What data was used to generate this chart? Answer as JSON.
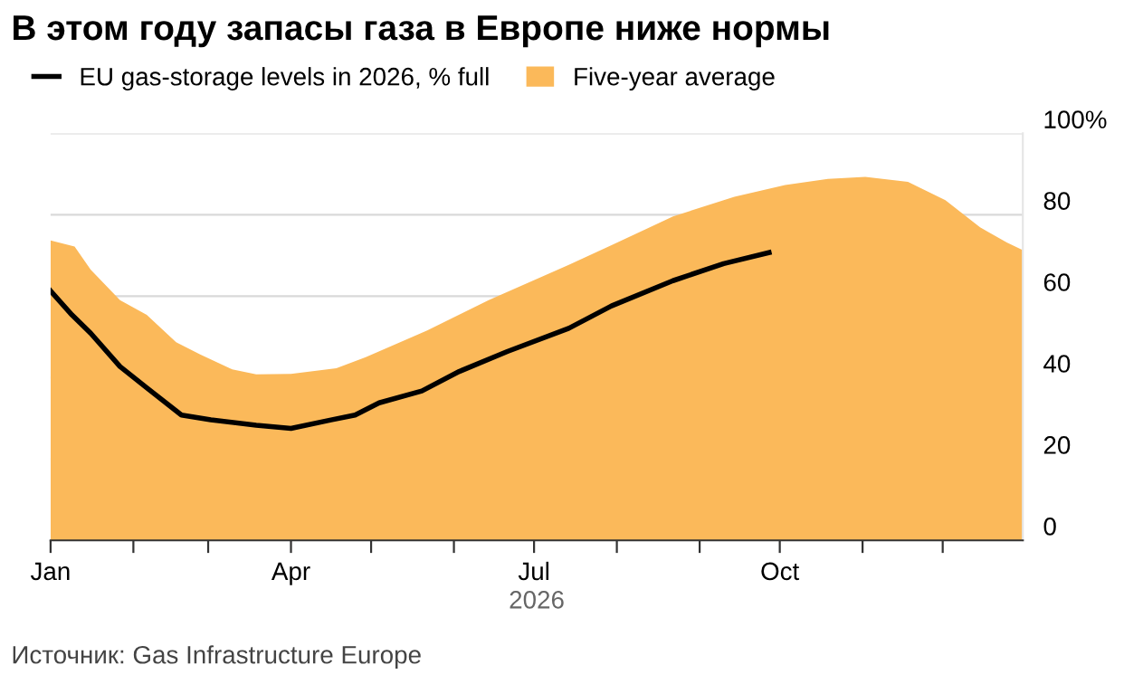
{
  "chart_data": {
    "type": "line",
    "title": "В этом году запасы газа в Европе ниже нормы",
    "xlabel": "2026",
    "annotations": [
      "Источник: Gas Infrastructure Europe"
    ],
    "series": [
      {
        "name": "EU gas-storage levels in 2026, % full",
        "color": "#000000",
        "x": [
          "2026-01-01",
          "2026-01-09",
          "2026-01-16",
          "2026-01-27",
          "2026-02-06",
          "2026-02-19",
          "2026-03-02",
          "2026-03-19",
          "2026-04-01",
          "2026-04-16",
          "2026-04-25",
          "2026-05-04",
          "2026-05-20",
          "2026-06-03",
          "2026-06-21",
          "2026-07-14",
          "2026-07-30",
          "2026-08-22",
          "2026-09-10",
          "2026-09-27"
        ],
        "values": [
          61.3,
          55.4,
          50.9,
          42.7,
          37.5,
          30.8,
          29.6,
          28.3,
          27.5,
          29.6,
          30.8,
          33.8,
          36.7,
          41.5,
          46.4,
          52.1,
          57.6,
          63.8,
          68,
          70.7
        ]
      },
      {
        "name": "Five-year average",
        "color": "#fbb95a",
        "type": "area",
        "x": [
          "2026-01-01",
          "2026-01-10",
          "2026-01-16",
          "2026-01-27",
          "2026-02-06",
          "2026-02-17",
          "2026-02-26",
          "2026-03-10",
          "2026-03-19",
          "2026-04-01",
          "2026-04-18",
          "2026-04-29",
          "2026-05-22",
          "2026-06-14",
          "2026-07-14",
          "2026-07-30",
          "2026-08-22",
          "2026-09-14",
          "2026-10-03",
          "2026-10-19",
          "2026-11-02",
          "2026-11-18",
          "2026-12-02",
          "2026-12-15",
          "2026-12-25",
          "2026-12-31"
        ],
        "values": [
          73.7,
          72.2,
          66.5,
          59,
          55.4,
          48.7,
          45.7,
          42,
          40.8,
          40.9,
          42.3,
          45,
          51.6,
          59,
          67.7,
          72.5,
          79.6,
          84.4,
          87.3,
          88.8,
          89.3,
          88.1,
          83.6,
          76.9,
          73.2,
          71.3
        ]
      }
    ],
    "xlim": [
      "2026-01-01",
      "2026-12-31"
    ],
    "xticks": [
      {
        "value": "2026-01-01",
        "label": "Jan"
      },
      {
        "value": "2026-02-01",
        "label": null
      },
      {
        "value": "2026-03-01",
        "label": null
      },
      {
        "value": "2026-04-01",
        "label": "Apr"
      },
      {
        "value": "2026-05-01",
        "label": null
      },
      {
        "value": "2026-06-01",
        "label": null
      },
      {
        "value": "2026-07-01",
        "label": "Jul"
      },
      {
        "value": "2026-08-01",
        "label": null
      },
      {
        "value": "2026-09-01",
        "label": null
      },
      {
        "value": "2026-10-01",
        "label": "Oct"
      },
      {
        "value": "2026-11-01",
        "label": null
      },
      {
        "value": "2026-12-01",
        "label": null
      }
    ],
    "ylim": [
      0,
      100
    ],
    "yticks": [
      0,
      20,
      40,
      60,
      80,
      {
        "value": 100,
        "label": "100%"
      }
    ],
    "grid": "y",
    "legend": "top left"
  }
}
